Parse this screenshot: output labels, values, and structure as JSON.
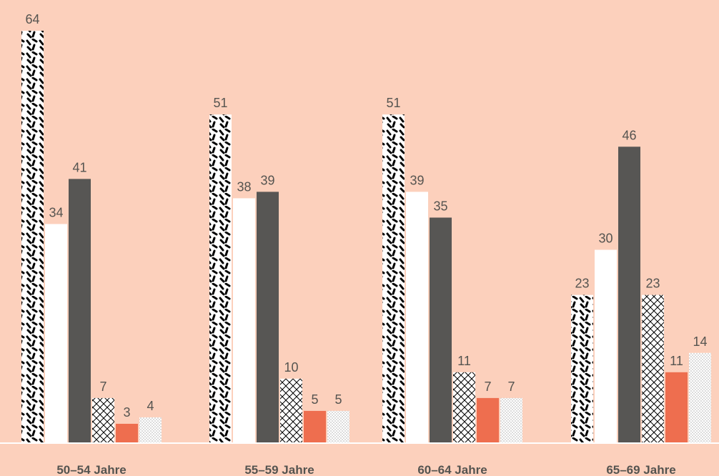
{
  "chart_data": {
    "type": "bar",
    "categories": [
      "50–54 Jahre",
      "55–59 Jahre",
      "60–64 Jahre",
      "65–69 Jahre"
    ],
    "series": [
      {
        "values": [
          64,
          51,
          51,
          23
        ],
        "pattern": "dashes",
        "color": "#000000"
      },
      {
        "values": [
          34,
          38,
          39,
          30
        ],
        "pattern": "solid",
        "color": "#ffffff"
      },
      {
        "values": [
          41,
          39,
          35,
          46
        ],
        "pattern": "solid",
        "color": "#575654"
      },
      {
        "values": [
          7,
          10,
          11,
          23
        ],
        "pattern": "crosshatch",
        "color": "#000000"
      },
      {
        "values": [
          3,
          5,
          7,
          11
        ],
        "pattern": "solid",
        "color": "#ee6e4f"
      },
      {
        "values": [
          4,
          5,
          7,
          14
        ],
        "pattern": "dots",
        "color": "#000000"
      }
    ],
    "ylim": [
      0,
      64
    ],
    "grid": false,
    "legend": "none"
  },
  "colors": {
    "background": "#fcd0bc",
    "text": "#555450",
    "baseline": "#ffffff"
  }
}
